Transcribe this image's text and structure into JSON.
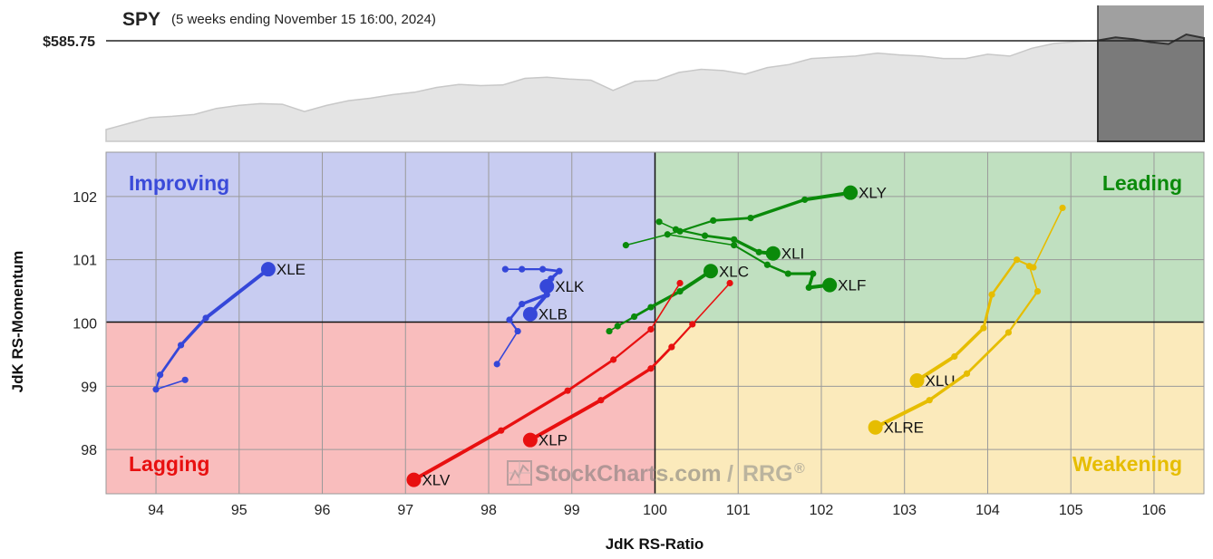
{
  "header": {
    "symbol": "SPY",
    "period": "(5 weeks ending November 15 16:00, 2024)",
    "price": "$585.75"
  },
  "axes": {
    "xlabel": "JdK RS-Ratio",
    "ylabel": "JdK RS-Momentum"
  },
  "quadrants": {
    "improving": "Improving",
    "leading": "Leading",
    "lagging": "Lagging",
    "weakening": "Weakening"
  },
  "watermark": {
    "brand": "StockCharts.com",
    "sep": "/",
    "product": "RRG",
    "reg": "®"
  },
  "colors": {
    "improving_bg": "#c8ccf1",
    "leading_bg": "#c0e0c0",
    "lagging_bg": "#f9bdbd",
    "weakening_bg": "#fbeabb",
    "blue": "#3547d9",
    "green": "#0a8a0a",
    "red": "#e81010",
    "yellow": "#e6bd00"
  },
  "chart_data": {
    "type": "scatter",
    "title": "SPY",
    "xlabel": "JdK RS-Ratio",
    "ylabel": "JdK RS-Momentum",
    "xlim": [
      93.4,
      106.6
    ],
    "ylim": [
      97.3,
      102.7
    ],
    "xticks": [
      94,
      95,
      96,
      97,
      98,
      99,
      100,
      101,
      102,
      103,
      104,
      105,
      106
    ],
    "yticks": [
      98,
      99,
      100,
      101,
      102
    ],
    "center": [
      100,
      100
    ],
    "grid": true,
    "series": [
      {
        "name": "XLE",
        "color": "blue",
        "x": [
          94.35,
          94.0,
          94.05,
          94.3,
          94.6,
          95.35
        ],
        "y": [
          99.1,
          98.95,
          99.18,
          99.65,
          100.08,
          100.85
        ]
      },
      {
        "name": "XLK",
        "color": "blue",
        "x": [
          98.2,
          98.4,
          98.65,
          98.85,
          98.75,
          98.7
        ],
        "y": [
          100.85,
          100.85,
          100.85,
          100.82,
          100.7,
          100.58
        ]
      },
      {
        "name": "XLB",
        "color": "blue",
        "x": [
          98.1,
          98.35,
          98.25,
          98.4,
          98.7,
          98.5
        ],
        "y": [
          99.35,
          99.87,
          100.05,
          100.3,
          100.45,
          100.14
        ]
      },
      {
        "name": "XLY",
        "color": "green",
        "x": [
          99.65,
          100.3,
          100.7,
          101.15,
          101.8,
          102.35
        ],
        "y": [
          101.23,
          101.45,
          101.62,
          101.66,
          101.95,
          102.06
        ]
      },
      {
        "name": "XLI",
        "color": "green",
        "x": [
          100.05,
          100.25,
          100.6,
          100.95,
          101.25,
          101.42
        ],
        "y": [
          101.6,
          101.48,
          101.38,
          101.32,
          101.12,
          101.1
        ]
      },
      {
        "name": "XLF",
        "color": "green",
        "x": [
          100.15,
          100.95,
          101.35,
          101.6,
          101.9,
          101.85,
          102.1
        ],
        "y": [
          101.4,
          101.23,
          100.92,
          100.78,
          100.78,
          100.56,
          100.6
        ]
      },
      {
        "name": "XLC",
        "color": "green",
        "x": [
          99.45,
          99.55,
          99.75,
          99.95,
          100.3,
          100.67
        ],
        "y": [
          99.87,
          99.95,
          100.1,
          100.25,
          100.5,
          100.82
        ]
      },
      {
        "name": "XLP",
        "color": "red",
        "x": [
          100.9,
          100.45,
          100.2,
          99.95,
          99.35,
          98.5
        ],
        "y": [
          100.63,
          99.98,
          99.62,
          99.28,
          98.78,
          98.15
        ]
      },
      {
        "name": "XLV",
        "color": "red",
        "x": [
          100.3,
          99.95,
          99.5,
          98.95,
          98.15,
          97.1
        ],
        "y": [
          100.63,
          99.9,
          99.42,
          98.93,
          98.3,
          97.52
        ]
      },
      {
        "name": "XLU",
        "color": "yellow",
        "x": [
          104.9,
          104.55,
          104.35,
          104.05,
          103.95,
          103.6,
          103.15
        ],
        "y": [
          101.82,
          100.88,
          101.0,
          100.45,
          99.92,
          99.47,
          99.09
        ]
      },
      {
        "name": "XLRE",
        "color": "yellow",
        "x": [
          104.5,
          104.6,
          104.25,
          103.75,
          103.3,
          102.65
        ],
        "y": [
          100.9,
          100.5,
          99.85,
          99.2,
          98.78,
          98.35
        ]
      }
    ],
    "price_series": [
      62,
      63,
      64,
      64.2,
      64.5,
      65.5,
      66,
      66.3,
      66.2,
      65,
      66,
      66.8,
      67.2,
      67.8,
      68.2,
      69,
      69.5,
      69.3,
      69.4,
      70.5,
      70.7,
      70.4,
      70.2,
      68.5,
      70,
      70.2,
      71.5,
      72,
      71.8,
      71.2,
      72.3,
      72.8,
      73.8,
      74,
      74.2,
      74.7,
      74.4,
      74.2,
      73.8,
      73.8,
      74.5,
      74.2,
      75.5,
      76.3,
      76.6,
      76.8
    ],
    "price_series_recent": [
      76.8,
      77.3,
      77,
      76.5,
      76.2,
      77.8,
      77.2
    ]
  }
}
